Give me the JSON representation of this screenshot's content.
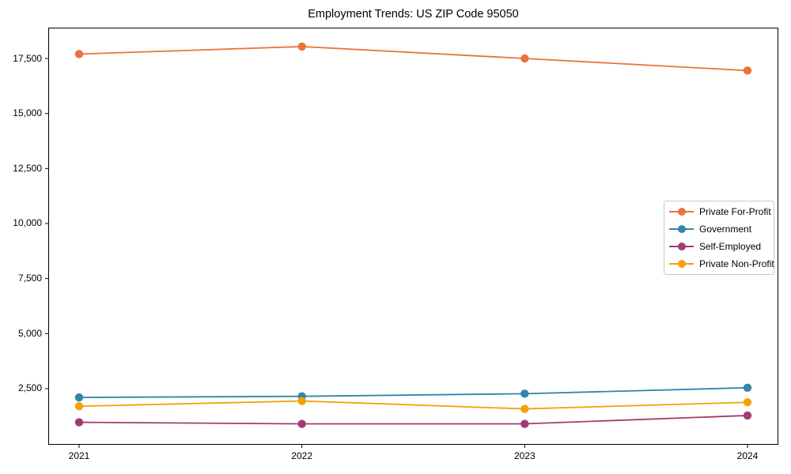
{
  "chart_data": {
    "type": "line",
    "title": "Employment Trends: US ZIP Code 95050",
    "x": [
      2021,
      2022,
      2023,
      2024
    ],
    "x_tick_labels": [
      "2021",
      "2022",
      "2023",
      "2024"
    ],
    "series": [
      {
        "name": "Private For-Profit",
        "color": "#E8743B",
        "values": [
          17700,
          18040,
          17500,
          16950
        ]
      },
      {
        "name": "Government",
        "color": "#3386A6",
        "values": [
          2100,
          2150,
          2270,
          2540
        ]
      },
      {
        "name": "Self-Employed",
        "color": "#A23B72",
        "values": [
          970,
          900,
          900,
          1280
        ]
      },
      {
        "name": "Private Non-Profit",
        "color": "#F1A208",
        "values": [
          1700,
          1940,
          1580,
          1880
        ]
      }
    ],
    "ylim": [
      -50,
      18900
    ],
    "y_ticks": [
      2500,
      5000,
      7500,
      10000,
      12500,
      15000,
      17500
    ],
    "y_tick_labels": [
      "2,500",
      "5,000",
      "7,500",
      "10,000",
      "12,500",
      "15,000",
      "17,500"
    ],
    "xlabel": "",
    "ylabel": "",
    "grid": false,
    "marker": "circle",
    "legend": {
      "position": "middle-right",
      "items": [
        "Private For-Profit",
        "Government",
        "Self-Employed",
        "Private Non-Profit"
      ]
    },
    "axis_color": "#000000",
    "background_color": "#ffffff"
  }
}
